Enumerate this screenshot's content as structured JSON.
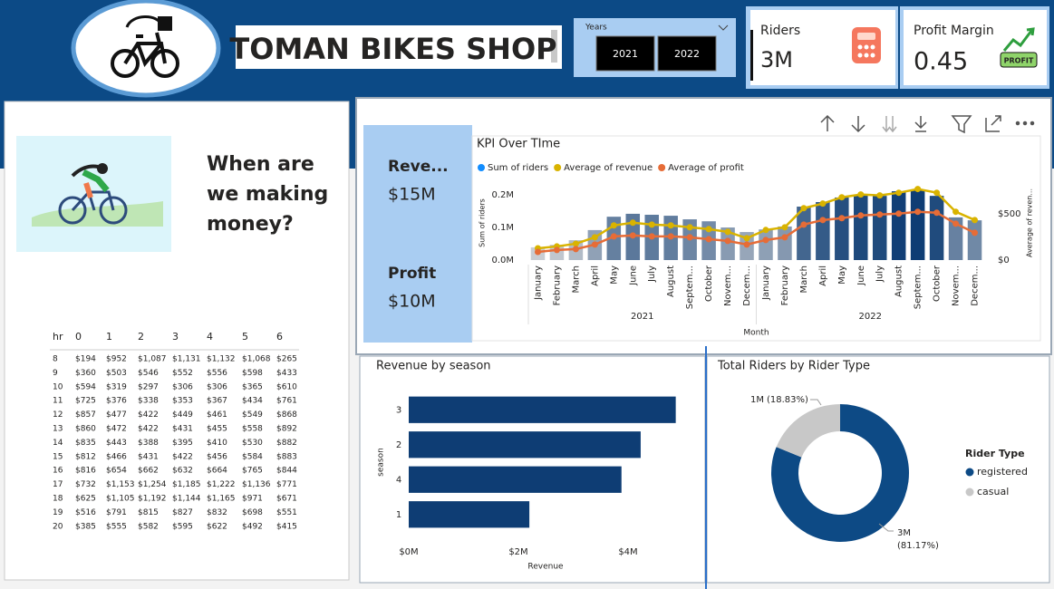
{
  "header": {
    "title": "TOMAN BIKES SHOP",
    "slicer": {
      "label": "Years",
      "options": [
        "2021",
        "2022"
      ]
    }
  },
  "cards": [
    {
      "label": "Riders",
      "value": "3M"
    },
    {
      "label": "Profit Margin",
      "value": "0.45",
      "badge": "PROFIT"
    }
  ],
  "kpi_cards": [
    {
      "label": "Reve...",
      "value": "$15M"
    },
    {
      "label": "Profit",
      "value": "$10M"
    }
  ],
  "question": "When are we making money?",
  "table": {
    "header": [
      "hr",
      "0",
      "1",
      "2",
      "3",
      "4",
      "5",
      "6"
    ],
    "rows": [
      [
        "8",
        "$194",
        "$952",
        "$1,087",
        "$1,131",
        "$1,132",
        "$1,068",
        "$265"
      ],
      [
        "9",
        "$360",
        "$503",
        "$546",
        "$552",
        "$556",
        "$598",
        "$433"
      ],
      [
        "10",
        "$594",
        "$319",
        "$297",
        "$306",
        "$306",
        "$365",
        "$610"
      ],
      [
        "11",
        "$725",
        "$376",
        "$338",
        "$353",
        "$367",
        "$434",
        "$761"
      ],
      [
        "12",
        "$857",
        "$477",
        "$422",
        "$449",
        "$461",
        "$549",
        "$868"
      ],
      [
        "13",
        "$860",
        "$472",
        "$422",
        "$431",
        "$455",
        "$558",
        "$892"
      ],
      [
        "14",
        "$835",
        "$443",
        "$388",
        "$395",
        "$410",
        "$530",
        "$882"
      ],
      [
        "15",
        "$812",
        "$466",
        "$431",
        "$422",
        "$456",
        "$584",
        "$883"
      ],
      [
        "16",
        "$816",
        "$654",
        "$662",
        "$632",
        "$664",
        "$765",
        "$844"
      ],
      [
        "17",
        "$732",
        "$1,153",
        "$1,254",
        "$1,185",
        "$1,222",
        "$1,136",
        "$771"
      ],
      [
        "18",
        "$625",
        "$1,105",
        "$1,192",
        "$1,144",
        "$1,165",
        "$971",
        "$671"
      ],
      [
        "19",
        "$516",
        "$791",
        "$815",
        "$827",
        "$832",
        "$698",
        "$551"
      ],
      [
        "20",
        "$385",
        "$555",
        "$582",
        "$595",
        "$622",
        "$492",
        "$415"
      ]
    ]
  },
  "chart_data": [
    {
      "type": "bar",
      "title": "KPI Over TIme",
      "x_label": "Month",
      "y_label": "Sum of riders",
      "y2_label": "Average of reven...",
      "x_groups": [
        "2021",
        "2022"
      ],
      "categories": [
        "January",
        "February",
        "March",
        "April",
        "May",
        "June",
        "July",
        "August",
        "Septem...",
        "October",
        "Novem...",
        "Decem...",
        "January",
        "February",
        "March",
        "April",
        "May",
        "June",
        "July",
        "August",
        "Septem...",
        "October",
        "Novem...",
        "Decem..."
      ],
      "ylim": [
        0,
        228000
      ],
      "yticks": [
        {
          "value": 0,
          "label": "0.0M"
        },
        {
          "value": 100000,
          "label": "0.1M"
        },
        {
          "value": 200000,
          "label": "0.2M"
        }
      ],
      "y2lim": [
        0,
        800
      ],
      "y2ticks": [
        {
          "value": 0,
          "label": "$0"
        },
        {
          "value": 500,
          "label": "$500"
        }
      ],
      "bar_color_scale": [
        "#c9cdd3",
        "#0e3d74"
      ],
      "series": [
        {
          "name": "Sum of riders",
          "color": "#118dff",
          "values": [
            39000,
            47000,
            61000,
            92000,
            133000,
            142000,
            139000,
            136000,
            125000,
            119000,
            100000,
            86000,
            94000,
            103000,
            164000,
            178000,
            192000,
            200000,
            197000,
            211000,
            214000,
            197000,
            131000,
            122000
          ]
        },
        {
          "name": "Average of revenue",
          "color": "#d9b300",
          "axis": "y2",
          "values": [
            127,
            147,
            176,
            245,
            373,
            402,
            382,
            373,
            353,
            333,
            304,
            235,
            324,
            353,
            559,
            608,
            676,
            706,
            696,
            725,
            765,
            725,
            520,
            431
          ]
        },
        {
          "name": "Average of profit",
          "color": "#e66c37",
          "axis": "y2",
          "values": [
            88,
            108,
            118,
            167,
            255,
            265,
            255,
            255,
            245,
            225,
            206,
            167,
            216,
            245,
            382,
            431,
            451,
            480,
            490,
            500,
            520,
            510,
            392,
            294
          ]
        }
      ]
    },
    {
      "type": "hbar",
      "title": "Revenue by season",
      "x_label": "Revenue",
      "y_label": "season",
      "color": "#0e3d74",
      "categories": [
        "3",
        "2",
        "4",
        "1"
      ],
      "values": [
        4870000,
        4230000,
        3880000,
        2200000
      ],
      "xlim": [
        0,
        5000000
      ],
      "xticks": [
        {
          "value": 0,
          "label": "$0M"
        },
        {
          "value": 2000000,
          "label": "$2M"
        },
        {
          "value": 4000000,
          "label": "$4M"
        }
      ]
    },
    {
      "type": "donut",
      "title": "Total Riders by Rider Type",
      "legend_title": "Rider Type",
      "categories": [
        "registered",
        "casual"
      ],
      "colors": [
        "#0d4a85",
        "#c8c8c8"
      ],
      "values": [
        81.17,
        18.83
      ],
      "value_labels": [
        "(81.17%)",
        "(18.83%)"
      ],
      "count_labels": [
        "3M",
        "1M"
      ]
    }
  ]
}
